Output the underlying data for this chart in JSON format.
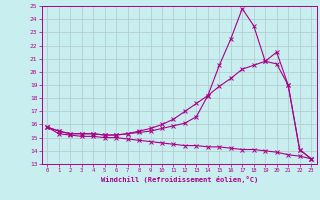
{
  "xlabel": "Windchill (Refroidissement éolien,°C)",
  "bg_color": "#c8eef0",
  "grid_color": "#b0c8cc",
  "line_color": "#aa0088",
  "x_values": [
    0,
    1,
    2,
    3,
    4,
    5,
    6,
    7,
    8,
    9,
    10,
    11,
    12,
    13,
    14,
    15,
    16,
    17,
    18,
    19,
    20,
    21,
    22,
    23
  ],
  "curve1": [
    15.8,
    15.5,
    15.3,
    15.3,
    15.3,
    15.2,
    15.2,
    15.3,
    15.4,
    15.5,
    15.7,
    15.9,
    16.1,
    16.6,
    18.2,
    20.5,
    22.5,
    24.8,
    23.5,
    20.8,
    20.6,
    19.0,
    14.1,
    13.4
  ],
  "curve2": [
    15.8,
    15.5,
    15.3,
    15.3,
    15.3,
    15.2,
    15.2,
    15.3,
    15.5,
    15.7,
    16.0,
    16.4,
    17.0,
    17.6,
    18.2,
    18.9,
    19.5,
    20.2,
    20.5,
    20.8,
    21.5,
    19.0,
    14.1,
    13.4
  ],
  "curve3": [
    15.8,
    15.3,
    15.2,
    15.1,
    15.1,
    15.0,
    15.0,
    14.9,
    14.8,
    14.7,
    14.6,
    14.5,
    14.4,
    14.4,
    14.3,
    14.3,
    14.2,
    14.1,
    14.1,
    14.0,
    13.9,
    13.7,
    13.6,
    13.4
  ],
  "ylim": [
    13,
    25
  ],
  "xlim": [
    -0.5,
    23.5
  ],
  "yticks": [
    13,
    14,
    15,
    16,
    17,
    18,
    19,
    20,
    21,
    22,
    23,
    24,
    25
  ],
  "xticks": [
    0,
    1,
    2,
    3,
    4,
    5,
    6,
    7,
    8,
    9,
    10,
    11,
    12,
    13,
    14,
    15,
    16,
    17,
    18,
    19,
    20,
    21,
    22,
    23
  ]
}
